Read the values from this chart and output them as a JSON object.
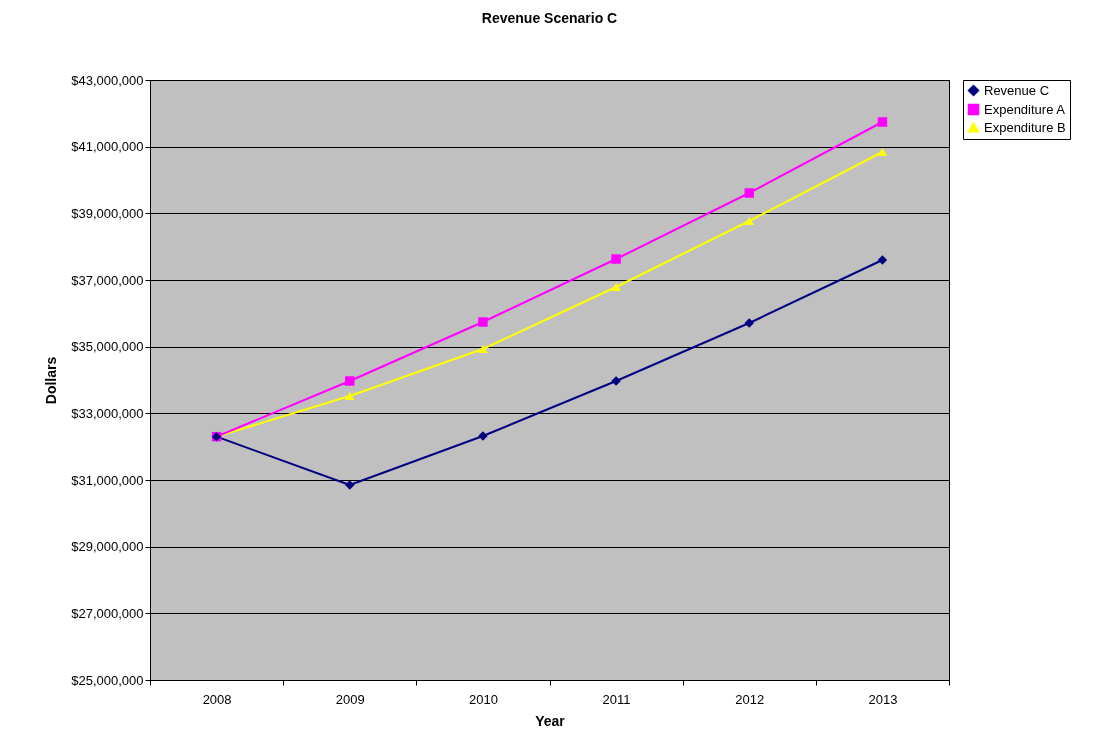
{
  "chart_data": {
    "type": "line",
    "title": "Revenue Scenario C",
    "xlabel": "Year",
    "ylabel": "Dollars",
    "categories": [
      "2008",
      "2009",
      "2010",
      "2011",
      "2012",
      "2013"
    ],
    "series": [
      {
        "name": "Revenue C",
        "color": "#000080",
        "marker": "diamond",
        "values": [
          32300000,
          30850000,
          32320000,
          33970000,
          35710000,
          37600000
        ]
      },
      {
        "name": "Expenditure A",
        "color": "#ff00ff",
        "marker": "square",
        "values": [
          32300000,
          33970000,
          35740000,
          37630000,
          39610000,
          41740000
        ]
      },
      {
        "name": "Expenditure B",
        "color": "#ffff00",
        "marker": "triangle",
        "values": [
          32300000,
          33520000,
          34930000,
          36790000,
          38770000,
          40840000
        ]
      }
    ],
    "ylim": [
      25000000,
      43000000
    ],
    "yticks": [
      {
        "value": 25000000,
        "label": "$25,000,000"
      },
      {
        "value": 27000000,
        "label": "$27,000,000"
      },
      {
        "value": 29000000,
        "label": "$29,000,000"
      },
      {
        "value": 31000000,
        "label": "$31,000,000"
      },
      {
        "value": 33000000,
        "label": "$33,000,000"
      },
      {
        "value": 35000000,
        "label": "$35,000,000"
      },
      {
        "value": 37000000,
        "label": "$37,000,000"
      },
      {
        "value": 39000000,
        "label": "$39,000,000"
      },
      {
        "value": 41000000,
        "label": "$41,000,000"
      },
      {
        "value": 43000000,
        "label": "$43,000,000"
      }
    ],
    "grid": "y",
    "legend": "right",
    "line_style": "solid"
  }
}
